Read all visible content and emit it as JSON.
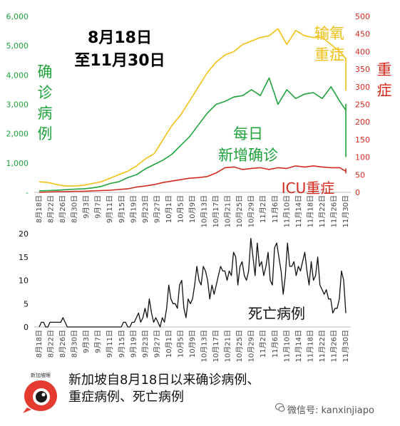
{
  "colors": {
    "confirmed": "#20a23c",
    "oxygen": "#f3c012",
    "icu": "#d42a1e",
    "deaths": "#111111",
    "tick_text": "#444444"
  },
  "chart_data": [
    {
      "type": "line",
      "annotations": {
        "date_range_line1": "8月18日",
        "date_range_line2": "至11月30日",
        "left_series_label": [
          "确",
          "诊",
          "病",
          "例"
        ],
        "right_axis_label": [
          "重",
          "症"
        ],
        "oxygen_label": [
          "输氧",
          "重症"
        ],
        "confirmed_label": [
          "每日",
          "新增确诊"
        ],
        "icu_label": "ICU重症"
      },
      "y_left": {
        "range": [
          0,
          6000
        ],
        "ticks": [
          "6,000",
          "5,000",
          "4,000",
          "3,000",
          "2,000",
          "1,000",
          "-"
        ],
        "tick_values": [
          6000,
          5000,
          4000,
          3000,
          2000,
          1000,
          0
        ]
      },
      "y_right": {
        "range": [
          0,
          500
        ],
        "ticks": [
          "500",
          "450",
          "400",
          "350",
          "300",
          "250",
          "200",
          "150",
          "100",
          "50",
          "0"
        ],
        "tick_values": [
          500,
          450,
          400,
          350,
          300,
          250,
          200,
          150,
          100,
          50,
          0
        ]
      },
      "x_tick_labels": [
        "8月18日",
        "8月22日",
        "8月26日",
        "8月30日",
        "9月3日",
        "9月7日",
        "9月11日",
        "9月15日",
        "9月19日",
        "9月23日",
        "9月27日",
        "10月1日",
        "10月5日",
        "10月9日",
        "10月13日",
        "10月17日",
        "10月21日",
        "10月25日",
        "10月29日",
        "11月2日",
        "11月6日",
        "11月10日",
        "11月14日",
        "11月18日",
        "11月22日",
        "11月26日",
        "11月30日"
      ],
      "series": [
        {
          "axis": "left",
          "color": "confirmed",
          "x_start": "8月18日",
          "step_days": 3,
          "values": [
            50,
            60,
            70,
            90,
            110,
            120,
            150,
            200,
            300,
            360,
            500,
            600,
            800,
            950,
            1100,
            1300,
            1600,
            1900,
            2300,
            2700,
            3000,
            3100,
            3250,
            3300,
            3500,
            3300,
            3900,
            3000,
            3500,
            3200,
            3350,
            3400,
            3200,
            3600,
            3100,
            2800,
            3000,
            2800,
            2400,
            1200
          ]
        },
        {
          "axis": "right",
          "color": "oxygen",
          "x_start": "8月18日",
          "step_days": 3,
          "values": [
            30,
            28,
            22,
            18,
            18,
            20,
            25,
            30,
            40,
            50,
            60,
            75,
            95,
            110,
            150,
            190,
            220,
            260,
            300,
            340,
            370,
            390,
            400,
            420,
            430,
            440,
            445,
            465,
            420,
            460,
            445,
            440,
            440,
            420,
            400,
            380,
            330,
            300,
            290,
            295
          ]
        },
        {
          "axis": "right",
          "color": "icu",
          "x_start": "8月18日",
          "step_days": 3,
          "values": [
            0,
            1,
            2,
            2,
            3,
            3,
            4,
            5,
            6,
            8,
            10,
            15,
            18,
            22,
            28,
            32,
            36,
            40,
            42,
            45,
            55,
            70,
            72,
            65,
            68,
            70,
            65,
            70,
            68,
            75,
            72,
            75,
            72,
            70,
            70,
            60,
            62,
            55,
            65,
            68
          ]
        }
      ]
    },
    {
      "type": "line",
      "annotations": {
        "series_label": "死亡病例"
      },
      "y": {
        "range": [
          0,
          20
        ],
        "ticks": [
          "20",
          "15",
          "10",
          "5",
          "0"
        ],
        "tick_values": [
          20,
          15,
          10,
          5,
          0
        ]
      },
      "x_tick_labels": [
        "8月18日",
        "8月22日",
        "8月26日",
        "8月30日",
        "9月3日",
        "9月7日",
        "9月11日",
        "9月15日",
        "9月19日",
        "9月23日",
        "9月27日",
        "10月1日",
        "10月5日",
        "10月9日",
        "10月13日",
        "10月17日",
        "10月21日",
        "10月25日",
        "10月29日",
        "11月2日",
        "11月6日",
        "11月10日",
        "11月14日",
        "11月18日",
        "11月22日",
        "11月26日",
        "11月30日"
      ],
      "series": [
        {
          "color": "deaths",
          "x_start": "8月18日",
          "step_days": 1,
          "values": [
            0,
            1,
            1,
            0,
            0,
            1,
            1,
            1,
            1,
            1,
            1,
            2,
            1,
            0,
            0,
            0,
            0,
            0,
            0,
            0,
            0,
            0,
            0,
            0,
            0,
            0,
            0,
            0,
            0,
            0,
            0,
            0,
            0,
            0,
            0,
            0,
            0,
            0,
            0,
            1,
            1,
            0,
            0,
            1,
            1,
            2,
            3,
            1,
            2,
            4,
            2,
            6,
            3,
            1,
            2,
            1,
            0,
            2,
            1,
            4,
            9,
            6,
            5,
            5,
            4,
            9,
            10,
            4,
            2,
            6,
            5,
            6,
            9,
            13,
            10,
            9,
            13,
            12,
            10,
            6,
            9,
            7,
            9,
            11,
            13,
            12,
            12,
            10,
            12,
            11,
            16,
            15,
            9,
            13,
            14,
            11,
            10,
            12,
            19,
            15,
            11,
            18,
            13,
            14,
            11,
            13,
            16,
            10,
            9,
            17,
            18,
            15,
            12,
            7,
            11,
            18,
            13,
            13,
            14,
            11,
            13,
            12,
            14,
            16,
            12,
            9,
            14,
            10,
            11,
            15,
            9,
            8,
            7,
            8,
            6,
            6,
            3,
            4,
            4,
            6,
            12,
            10,
            3
          ]
        }
      ]
    }
  ],
  "footer": {
    "caption_line1": "新加坡自8月18日以来确诊病例、",
    "caption_line2": "重症病例、死亡病例",
    "logo_text": "新加坡眼",
    "watermark": "微信号: kanxinjiapo"
  }
}
